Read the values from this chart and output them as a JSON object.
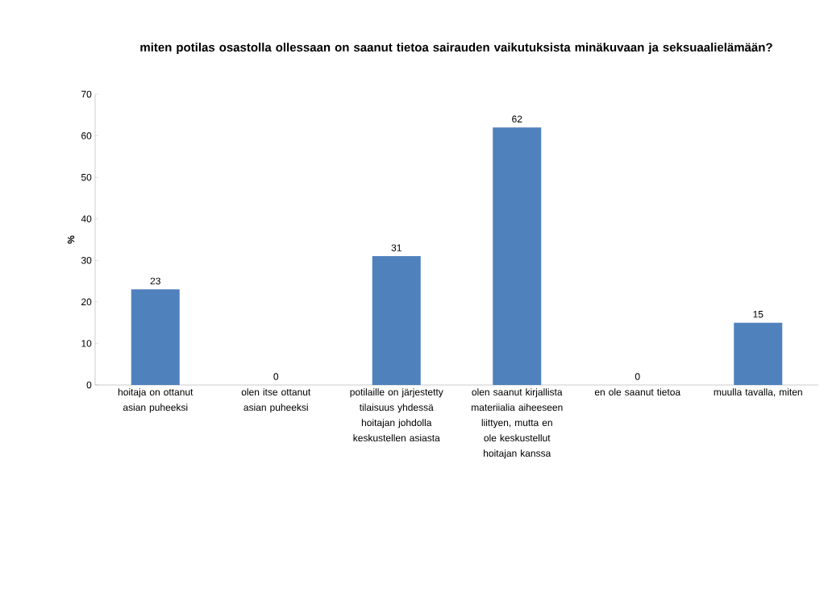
{
  "chart_data": {
    "type": "bar",
    "title": "miten potilas osastolla ollessaan on saanut tietoa sairauden vaikutuksista minäkuvaan ja seksuaalielämään?",
    "ylabel": "%",
    "categories": [
      "hoitaja on ottanut asian puheeksi",
      "olen itse ottanut asian puheeksi",
      "potilaille on järjestetty tilaisuus yhdessä hoitajan johdolla keskustellen asiasta",
      "olen saanut kirjallista materiialia aiheeseen liittyen, mutta en ole keskustellut hoitajan kanssa",
      "en ole saanut tietoa",
      "muulla tavalla, miten"
    ],
    "values": [
      23,
      0,
      31,
      62,
      0,
      15
    ],
    "color": "#4f81bd",
    "ylim": [
      0,
      70
    ],
    "yticks": [
      0,
      10,
      20,
      30,
      40,
      50,
      60,
      70
    ],
    "data_labels": true
  }
}
